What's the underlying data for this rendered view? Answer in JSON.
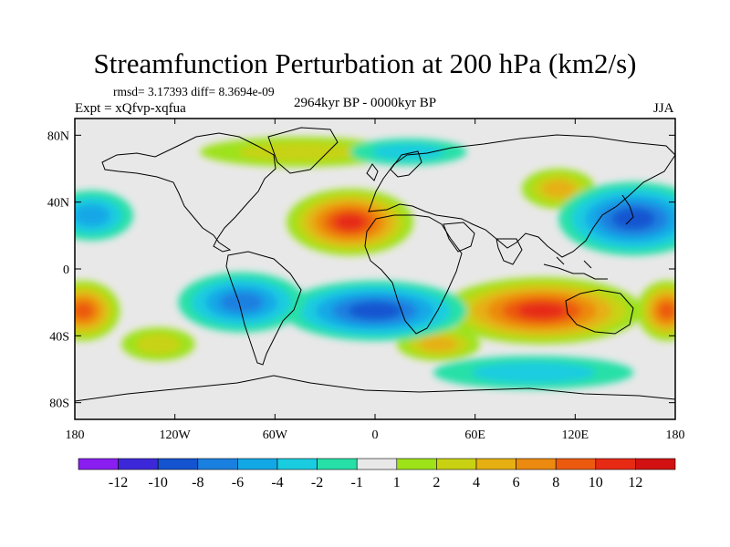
{
  "chart_data": {
    "type": "heatmap",
    "title": "Streamfunction Perturbation at 200 hPa (km2/s)",
    "stats_text": "rmsd= 3.17393  diff= 8.3694e-09",
    "experiment_text": "Expt = xQfvp-xqfua",
    "period_text": "2964kyr BP - 0000kyr BP",
    "season_text": "JJA",
    "x_range": [
      -180,
      180
    ],
    "y_range": [
      -90,
      90
    ],
    "x_ticks": [
      {
        "value": -180,
        "label": "180"
      },
      {
        "value": -120,
        "label": "120W"
      },
      {
        "value": -60,
        "label": "60W"
      },
      {
        "value": 0,
        "label": "0"
      },
      {
        "value": 60,
        "label": "60E"
      },
      {
        "value": 120,
        "label": "120E"
      },
      {
        "value": 180,
        "label": "180"
      }
    ],
    "y_ticks": [
      {
        "value": 80,
        "label": "80N"
      },
      {
        "value": 40,
        "label": "40N"
      },
      {
        "value": 0,
        "label": "0"
      },
      {
        "value": -40,
        "label": "40S"
      },
      {
        "value": -80,
        "label": "80S"
      }
    ],
    "colorbar": {
      "levels": [
        -12,
        -10,
        -8,
        -6,
        -4,
        -2,
        -1,
        1,
        2,
        4,
        6,
        8,
        10,
        12
      ],
      "labels": [
        "-12",
        "-10",
        "-8",
        "-6",
        "-4",
        "-2",
        "-1",
        "1",
        "2",
        "4",
        "6",
        "8",
        "10",
        "12"
      ],
      "colors": [
        "#8a1ef0",
        "#3c28d8",
        "#1454d0",
        "#1a80e0",
        "#12a8e6",
        "#1acce0",
        "#26e0a8",
        "#e8e8e8",
        "#9ee21a",
        "#c8d212",
        "#e6b012",
        "#ec8a10",
        "#ec5a10",
        "#e62a14",
        "#d21212"
      ]
    },
    "features": [
      {
        "type": "positive",
        "lon": -15,
        "lat": 28,
        "value": 11,
        "rlon": 38,
        "rlat": 20
      },
      {
        "type": "positive",
        "lon": 100,
        "lat": -25,
        "value": 11,
        "rlon": 60,
        "rlat": 20
      },
      {
        "type": "positive",
        "lon": -175,
        "lat": -25,
        "value": 8,
        "rlon": 22,
        "rlat": 18
      },
      {
        "type": "positive",
        "lon": 175,
        "lat": -25,
        "value": 8,
        "rlon": 18,
        "rlat": 18
      },
      {
        "type": "positive",
        "lon": 110,
        "lat": 48,
        "value": 4,
        "rlon": 22,
        "rlat": 12
      },
      {
        "type": "positive",
        "lon": 38,
        "lat": -45,
        "value": 4,
        "rlon": 25,
        "rlat": 10
      },
      {
        "type": "positive",
        "lon": -130,
        "lat": -45,
        "value": 2,
        "rlon": 22,
        "rlat": 10
      },
      {
        "type": "positive",
        "lon": -45,
        "lat": 70,
        "value": 2,
        "rlon": 60,
        "rlat": 9
      },
      {
        "type": "negative",
        "lon": 155,
        "lat": 30,
        "value": -10,
        "rlon": 45,
        "rlat": 22
      },
      {
        "type": "negative",
        "lon": 0,
        "lat": -25,
        "value": -9,
        "rlon": 55,
        "rlat": 18
      },
      {
        "type": "negative",
        "lon": -80,
        "lat": -20,
        "value": -8,
        "rlon": 38,
        "rlat": 18
      },
      {
        "type": "negative",
        "lon": -170,
        "lat": 32,
        "value": -5,
        "rlon": 25,
        "rlat": 15
      },
      {
        "type": "negative",
        "lon": 95,
        "lat": -62,
        "value": -3,
        "rlon": 60,
        "rlat": 10
      },
      {
        "type": "negative",
        "lon": 20,
        "lat": 70,
        "value": -3,
        "rlon": 35,
        "rlat": 8
      }
    ]
  }
}
